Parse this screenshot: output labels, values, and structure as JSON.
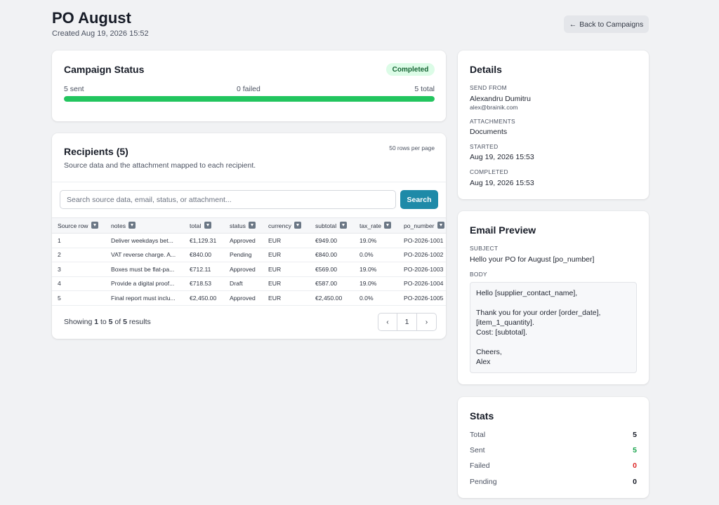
{
  "header": {
    "title": "PO August",
    "created": "Created Aug 19, 2026 15:52",
    "back_label": "Back to Campaigns"
  },
  "status": {
    "title": "Campaign Status",
    "badge": "Completed",
    "sent_text": "5 sent",
    "failed_text": "0 failed",
    "total_text": "5 total",
    "progress": 1.0,
    "accent": "#22c55e"
  },
  "recipients": {
    "title": "Recipients (5)",
    "subtitle": "Source data and the attachment mapped to each recipient.",
    "rows_per_page": "50 rows per page",
    "search_placeholder": "Search source data, email, status, or attachment...",
    "search_label": "Search",
    "columns": [
      "Source row",
      "notes",
      "total",
      "status",
      "currency",
      "subtotal",
      "tax_rate",
      "po_number"
    ],
    "rows": [
      [
        "1",
        "Deliver weekdays bet...",
        "€1,129.31",
        "Approved",
        "EUR",
        "€949.00",
        "19.0%",
        "PO-2026-1001"
      ],
      [
        "2",
        "VAT reverse charge. A...",
        "€840.00",
        "Pending",
        "EUR",
        "€840.00",
        "0.0%",
        "PO-2026-1002"
      ],
      [
        "3",
        "Boxes must be flat-pa...",
        "€712.11",
        "Approved",
        "EUR",
        "€569.00",
        "19.0%",
        "PO-2026-1003"
      ],
      [
        "4",
        "Provide a digital proof...",
        "€718.53",
        "Draft",
        "EUR",
        "€587.00",
        "19.0%",
        "PO-2026-1004"
      ],
      [
        "5",
        "Final report must inclu...",
        "€2,450.00",
        "Approved",
        "EUR",
        "€2,450.00",
        "0.0%",
        "PO-2026-1005"
      ]
    ],
    "showing_prefix": "Showing ",
    "showing_from": "1",
    "showing_to_word": " to ",
    "showing_to": "5",
    "showing_of_word": " of ",
    "showing_total": "5",
    "showing_suffix": " results",
    "page": "1",
    "brand_color": "#1e8aa8"
  },
  "details": {
    "title": "Details",
    "send_from_label": "SEND FROM",
    "send_from_name": "Alexandru Dumitru",
    "send_from_email": "alex@brainik.com",
    "attachments_label": "ATTACHMENTS",
    "attachments_value": "Documents",
    "started_label": "STARTED",
    "started_value": "Aug 19, 2026 15:53",
    "completed_label": "COMPLETED",
    "completed_value": "Aug 19, 2026 15:53"
  },
  "preview": {
    "title": "Email Preview",
    "subject_label": "SUBJECT",
    "subject_value": "Hello your PO for August [po_number]",
    "body_label": "BODY",
    "body_value": "Hello [supplier_contact_name],\n\nThank you for your order [order_date],\n[item_1_quantity].\nCost: [subtotal].\n\nCheers,\nAlex"
  },
  "stats": {
    "title": "Stats",
    "items": [
      {
        "label": "Total",
        "value": "5",
        "color": "#161b26"
      },
      {
        "label": "Sent",
        "value": "5",
        "color": "#16a34a"
      },
      {
        "label": "Failed",
        "value": "0",
        "color": "#dc2626"
      },
      {
        "label": "Pending",
        "value": "0",
        "color": "#161b26"
      }
    ]
  }
}
